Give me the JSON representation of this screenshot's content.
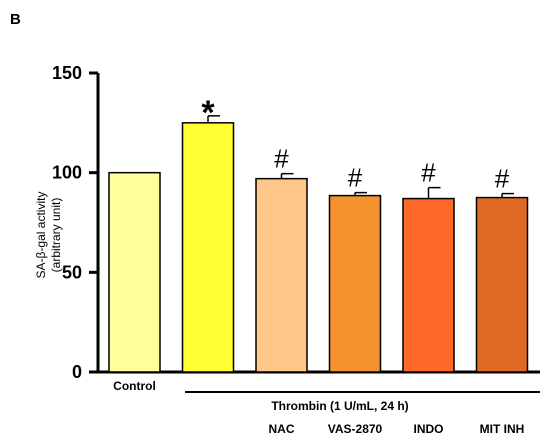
{
  "panel_label": "B",
  "chart_data": {
    "type": "bar",
    "ylabel_line1": "SA-β-gal activity",
    "ylabel_line2": "(arbitrary unit)",
    "ylim": [
      0,
      150
    ],
    "yticks": [
      "0",
      "50",
      "100",
      "150"
    ],
    "ytick_values": [
      0,
      50,
      100,
      150
    ],
    "categories": [
      "Control",
      "",
      "NAC",
      "VAS-2870",
      "INDO",
      "MIT INH"
    ],
    "values": [
      100,
      125,
      97,
      88.5,
      87,
      87.5
    ],
    "errors": [
      0,
      3.5,
      2.5,
      1.5,
      5.5,
      2
    ],
    "annotations": [
      "",
      "*",
      "#",
      "#",
      "#",
      "#"
    ],
    "colors": [
      "#FFFF99",
      "#FFFF33",
      "#FFC68A",
      "#F5922E",
      "#FF6A2A",
      "#E06A25"
    ],
    "group_label": "Thrombin (1 U/mL, 24 h)"
  }
}
